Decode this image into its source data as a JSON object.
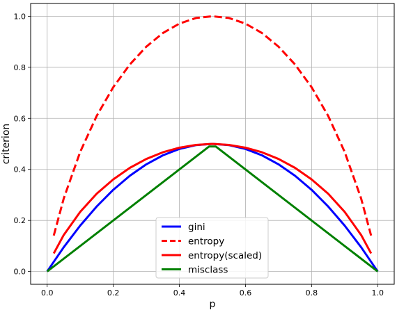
{
  "chart_data": {
    "type": "line",
    "title": "",
    "xlabel": "p",
    "ylabel": "criterion",
    "xlim": [
      -0.05,
      1.05
    ],
    "ylim": [
      -0.05,
      1.05
    ],
    "x_ticks": [
      "0.0",
      "0.2",
      "0.4",
      "0.6",
      "0.8",
      "1.0"
    ],
    "y_ticks": [
      "0.0",
      "0.2",
      "0.4",
      "0.6",
      "0.8",
      "1.0"
    ],
    "grid": true,
    "legend_position": "lower center",
    "series": [
      {
        "name": "gini",
        "color": "#0000ff",
        "style": "solid",
        "x": [
          0.0,
          0.05,
          0.1,
          0.15,
          0.2,
          0.25,
          0.3,
          0.35,
          0.4,
          0.45,
          0.5,
          0.55,
          0.6,
          0.65,
          0.7,
          0.75,
          0.8,
          0.85,
          0.9,
          0.95,
          1.0
        ],
        "y": [
          0.0,
          0.095,
          0.18,
          0.255,
          0.32,
          0.375,
          0.42,
          0.455,
          0.48,
          0.495,
          0.5,
          0.495,
          0.48,
          0.455,
          0.42,
          0.375,
          0.32,
          0.255,
          0.18,
          0.095,
          0.0
        ]
      },
      {
        "name": "entropy",
        "color": "#ff0000",
        "style": "dashed",
        "x": [
          0.02,
          0.05,
          0.1,
          0.15,
          0.2,
          0.25,
          0.3,
          0.35,
          0.4,
          0.45,
          0.5,
          0.55,
          0.6,
          0.65,
          0.7,
          0.75,
          0.8,
          0.85,
          0.9,
          0.95,
          0.98
        ],
        "y": [
          0.141,
          0.286,
          0.469,
          0.61,
          0.722,
          0.811,
          0.881,
          0.934,
          0.971,
          0.993,
          1.0,
          0.993,
          0.971,
          0.934,
          0.881,
          0.811,
          0.722,
          0.61,
          0.469,
          0.286,
          0.141
        ]
      },
      {
        "name": "entropy(scaled)",
        "color": "#ff0000",
        "style": "solid",
        "x": [
          0.02,
          0.05,
          0.1,
          0.15,
          0.2,
          0.25,
          0.3,
          0.35,
          0.4,
          0.45,
          0.5,
          0.55,
          0.6,
          0.65,
          0.7,
          0.75,
          0.8,
          0.85,
          0.9,
          0.95,
          0.98
        ],
        "y": [
          0.071,
          0.143,
          0.234,
          0.305,
          0.361,
          0.406,
          0.441,
          0.467,
          0.485,
          0.496,
          0.5,
          0.496,
          0.485,
          0.467,
          0.441,
          0.406,
          0.361,
          0.305,
          0.234,
          0.143,
          0.071
        ]
      },
      {
        "name": "misclass",
        "color": "#008000",
        "style": "solid",
        "x": [
          0.0,
          0.49,
          0.51,
          1.0
        ],
        "y": [
          0.0,
          0.49,
          0.49,
          0.0
        ]
      }
    ]
  }
}
